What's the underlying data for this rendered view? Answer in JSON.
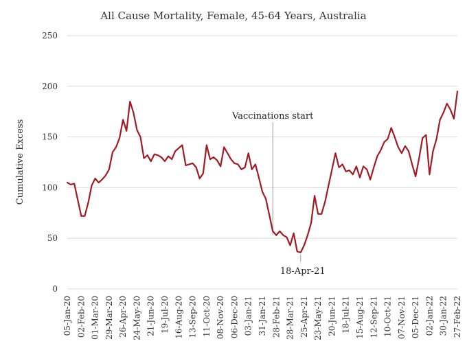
{
  "chart_data": {
    "type": "line",
    "title": "All Cause Mortality, Female, 45-64 Years, Australia",
    "xlabel": "",
    "ylabel": "Cumulative Excess",
    "ylim": [
      0,
      250
    ],
    "yticks": [
      "0",
      "50",
      "100",
      "150",
      "200",
      "250"
    ],
    "grid": "horizontal",
    "line_color": "#a31a22",
    "x": [
      "05-Jan-20",
      "12-Jan-20",
      "19-Jan-20",
      "26-Jan-20",
      "02-Feb-20",
      "09-Feb-20",
      "16-Feb-20",
      "23-Feb-20",
      "01-Mar-20",
      "08-Mar-20",
      "15-Mar-20",
      "22-Mar-20",
      "29-Mar-20",
      "05-Apr-20",
      "12-Apr-20",
      "19-Apr-20",
      "26-Apr-20",
      "03-May-20",
      "10-May-20",
      "17-May-20",
      "24-May-20",
      "31-May-20",
      "07-Jun-20",
      "14-Jun-20",
      "21-Jun-20",
      "28-Jun-20",
      "05-Jul-20",
      "12-Jul-20",
      "19-Jul-20",
      "26-Jul-20",
      "02-Aug-20",
      "09-Aug-20",
      "16-Aug-20",
      "23-Aug-20",
      "30-Aug-20",
      "06-Sep-20",
      "13-Sep-20",
      "20-Sep-20",
      "27-Sep-20",
      "04-Oct-20",
      "11-Oct-20",
      "18-Oct-20",
      "25-Oct-20",
      "01-Nov-20",
      "08-Nov-20",
      "15-Nov-20",
      "22-Nov-20",
      "29-Nov-20",
      "06-Dec-20",
      "13-Dec-20",
      "20-Dec-20",
      "27-Dec-20",
      "03-Jan-21",
      "10-Jan-21",
      "17-Jan-21",
      "24-Jan-21",
      "31-Jan-21",
      "07-Feb-21",
      "14-Feb-21",
      "21-Feb-21",
      "28-Feb-21",
      "07-Mar-21",
      "14-Mar-21",
      "21-Mar-21",
      "28-Mar-21",
      "04-Apr-21",
      "11-Apr-21",
      "18-Apr-21",
      "25-Apr-21",
      "02-May-21",
      "09-May-21",
      "16-May-21",
      "23-May-21",
      "30-May-21",
      "06-Jun-21",
      "13-Jun-21",
      "20-Jun-21",
      "27-Jun-21",
      "04-Jul-21",
      "11-Jul-21",
      "18-Jul-21",
      "25-Jul-21",
      "01-Aug-21",
      "08-Aug-21",
      "15-Aug-21",
      "22-Aug-21",
      "29-Aug-21",
      "05-Sep-21",
      "12-Sep-21",
      "19-Sep-21",
      "26-Sep-21",
      "03-Oct-21",
      "10-Oct-21",
      "17-Oct-21",
      "24-Oct-21",
      "31-Oct-21",
      "07-Nov-21",
      "14-Nov-21",
      "21-Nov-21",
      "28-Nov-21",
      "05-Dec-21",
      "12-Dec-21",
      "19-Dec-21",
      "26-Dec-21",
      "02-Jan-22",
      "09-Jan-22",
      "16-Jan-22",
      "23-Jan-22",
      "30-Jan-22",
      "06-Feb-22",
      "13-Feb-22",
      "20-Feb-22",
      "27-Feb-22"
    ],
    "xtick_labels": [
      "05-Jan-20",
      "02-Feb-20",
      "01-Mar-20",
      "29-Mar-20",
      "26-Apr-20",
      "24-May-20",
      "21-Jun-20",
      "19-Jul-20",
      "16-Aug-20",
      "13-Sep-20",
      "11-Oct-20",
      "08-Nov-20",
      "06-Dec-20",
      "03-Jan-21",
      "31-Jan-21",
      "28-Feb-21",
      "28-Mar-21",
      "25-Apr-21",
      "23-May-21",
      "20-Jun-21",
      "18-Jul-21",
      "15-Aug-21",
      "12-Sep-21",
      "10-Oct-21",
      "07-Nov-21",
      "05-Dec-21",
      "02-Jan-22",
      "30-Jan-22",
      "27-Feb-22"
    ],
    "series": [
      {
        "values": [
          105,
          103,
          104,
          88,
          72,
          72,
          85,
          102,
          109,
          105,
          108,
          112,
          118,
          135,
          140,
          149,
          167,
          156,
          185,
          174,
          157,
          150,
          129,
          132,
          126,
          133,
          132,
          130,
          126,
          131,
          128,
          136,
          139,
          142,
          122,
          123,
          124,
          120,
          109,
          114,
          142,
          128,
          130,
          127,
          121,
          140,
          134,
          128,
          124,
          123,
          118,
          120,
          134,
          118,
          123,
          110,
          96,
          89,
          73,
          57,
          53,
          57,
          53,
          51,
          43,
          55,
          37,
          36,
          43,
          53,
          65,
          92,
          74,
          74,
          86,
          102,
          118,
          134,
          120,
          123,
          116,
          117,
          113,
          121,
          110,
          121,
          118,
          108,
          120,
          131,
          137,
          145,
          148,
          159,
          150,
          140,
          134,
          141,
          136,
          123,
          111,
          129,
          149,
          152,
          113,
          136,
          148,
          167,
          174,
          183,
          177,
          168,
          195
        ]
      }
    ],
    "annotations": [
      {
        "text": "Vaccinations start",
        "at_x": "21-Feb-21",
        "at_y": 53
      },
      {
        "text": "18-Apr-21",
        "at_x": "18-Apr-21",
        "at_y": 36
      }
    ]
  }
}
